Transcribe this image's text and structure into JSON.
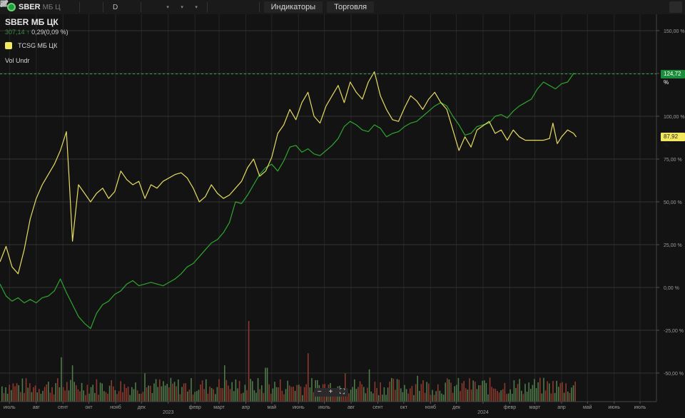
{
  "toolbar": {
    "ticker": "SBER",
    "ticker_suffix": "МБ Ц",
    "interval_label": "D",
    "indicators_label": "Индикаторы",
    "trading_label": "Торговля"
  },
  "legend": {
    "title": "SBER",
    "title_suffix": "МБ ЦК",
    "last_price": "307,14",
    "change": "0,29(0,09 %)",
    "compare_series": "TCSG МБ ЦК",
    "volume_indicator": "Vol Undr"
  },
  "badges": {
    "main": "124,72 %",
    "compare": "87,92 %"
  },
  "colors": {
    "main_series": "#2fa52f",
    "compare_series": "#e6db63",
    "volume_up": "#4f7a4a",
    "volume_down": "#8a3a2c",
    "background": "#131313"
  },
  "chart_data": {
    "type": "line",
    "y_unit": "%",
    "ylim": [
      -60,
      160
    ],
    "y_ticks": [
      "150,00 %",
      "125,00 %",
      "100,00 %",
      "75,00 %",
      "50,00 %",
      "25,00 %",
      "0,00 %",
      "-25,00 %",
      "-50,00 %"
    ],
    "y_tick_values": [
      150,
      125,
      100,
      75,
      50,
      25,
      0,
      -25,
      -50
    ],
    "x_ticks": [
      "июль",
      "авг",
      "сент",
      "окт",
      "нояб",
      "дек",
      "2023",
      "февр",
      "март",
      "апр",
      "май",
      "июнь",
      "июль",
      "авг",
      "сент",
      "окт",
      "нояб",
      "дек",
      "2024",
      "февр",
      "март",
      "апр",
      "май",
      "июнь",
      "июль"
    ],
    "x_range": [
      "2022-06-20",
      "2024-07-20"
    ],
    "grid": true,
    "series": [
      {
        "name": "SBER МБ ЦК",
        "points": [
          [
            "2022-06-20",
            2
          ],
          [
            "2022-06-27",
            -5
          ],
          [
            "2022-07-04",
            -8
          ],
          [
            "2022-07-11",
            -6
          ],
          [
            "2022-07-18",
            -9
          ],
          [
            "2022-07-25",
            -7
          ],
          [
            "2022-08-01",
            -9
          ],
          [
            "2022-08-08",
            -6
          ],
          [
            "2022-08-15",
            -5
          ],
          [
            "2022-08-22",
            -2
          ],
          [
            "2022-08-29",
            5
          ],
          [
            "2022-09-05",
            -3
          ],
          [
            "2022-09-12",
            -10
          ],
          [
            "2022-09-19",
            -17
          ],
          [
            "2022-09-26",
            -21
          ],
          [
            "2022-10-03",
            -24
          ],
          [
            "2022-10-10",
            -15
          ],
          [
            "2022-10-17",
            -10
          ],
          [
            "2022-10-24",
            -8
          ],
          [
            "2022-10-31",
            -4
          ],
          [
            "2022-11-07",
            -2
          ],
          [
            "2022-11-14",
            2
          ],
          [
            "2022-11-21",
            4
          ],
          [
            "2022-11-28",
            1
          ],
          [
            "2022-12-05",
            2
          ],
          [
            "2022-12-12",
            3
          ],
          [
            "2022-12-19",
            2
          ],
          [
            "2022-12-26",
            1
          ],
          [
            "2023-01-09",
            5
          ],
          [
            "2023-01-16",
            8
          ],
          [
            "2023-01-23",
            12
          ],
          [
            "2023-01-30",
            14
          ],
          [
            "2023-02-06",
            18
          ],
          [
            "2023-02-13",
            22
          ],
          [
            "2023-02-20",
            26
          ],
          [
            "2023-02-27",
            28
          ],
          [
            "2023-03-06",
            32
          ],
          [
            "2023-03-13",
            38
          ],
          [
            "2023-03-20",
            50
          ],
          [
            "2023-03-27",
            49
          ],
          [
            "2023-04-03",
            54
          ],
          [
            "2023-04-10",
            60
          ],
          [
            "2023-04-17",
            66
          ],
          [
            "2023-04-24",
            70
          ],
          [
            "2023-05-01",
            72
          ],
          [
            "2023-05-08",
            68
          ],
          [
            "2023-05-15",
            74
          ],
          [
            "2023-05-22",
            82
          ],
          [
            "2023-05-29",
            83
          ],
          [
            "2023-06-05",
            79
          ],
          [
            "2023-06-12",
            81
          ],
          [
            "2023-06-19",
            78
          ],
          [
            "2023-06-26",
            77
          ],
          [
            "2023-07-03",
            80
          ],
          [
            "2023-07-10",
            83
          ],
          [
            "2023-07-17",
            87
          ],
          [
            "2023-07-24",
            94
          ],
          [
            "2023-07-31",
            97
          ],
          [
            "2023-08-07",
            95
          ],
          [
            "2023-08-14",
            92
          ],
          [
            "2023-08-21",
            91
          ],
          [
            "2023-08-28",
            95
          ],
          [
            "2023-09-04",
            93
          ],
          [
            "2023-09-11",
            88
          ],
          [
            "2023-09-18",
            90
          ],
          [
            "2023-09-25",
            91
          ],
          [
            "2023-10-02",
            94
          ],
          [
            "2023-10-09",
            96
          ],
          [
            "2023-10-16",
            97
          ],
          [
            "2023-10-23",
            100
          ],
          [
            "2023-10-30",
            103
          ],
          [
            "2023-11-06",
            106
          ],
          [
            "2023-11-13",
            108
          ],
          [
            "2023-11-20",
            106
          ],
          [
            "2023-11-27",
            100
          ],
          [
            "2023-12-04",
            95
          ],
          [
            "2023-12-11",
            89
          ],
          [
            "2023-12-18",
            90
          ],
          [
            "2023-12-25",
            94
          ],
          [
            "2024-01-08",
            96
          ],
          [
            "2024-01-15",
            100
          ],
          [
            "2024-01-22",
            101
          ],
          [
            "2024-01-29",
            99
          ],
          [
            "2024-02-05",
            103
          ],
          [
            "2024-02-12",
            106
          ],
          [
            "2024-02-19",
            108
          ],
          [
            "2024-02-26",
            110
          ],
          [
            "2024-03-04",
            116
          ],
          [
            "2024-03-11",
            120
          ],
          [
            "2024-03-18",
            118
          ],
          [
            "2024-03-25",
            116
          ],
          [
            "2024-04-01",
            119
          ],
          [
            "2024-04-08",
            120
          ],
          [
            "2024-04-15",
            125
          ],
          [
            "2024-04-18",
            124.72
          ]
        ]
      },
      {
        "name": "TCSG МБ ЦК",
        "points": [
          [
            "2022-06-20",
            15
          ],
          [
            "2022-06-27",
            24
          ],
          [
            "2022-07-04",
            12
          ],
          [
            "2022-07-11",
            8
          ],
          [
            "2022-07-18",
            22
          ],
          [
            "2022-07-25",
            40
          ],
          [
            "2022-08-01",
            52
          ],
          [
            "2022-08-08",
            60
          ],
          [
            "2022-08-15",
            66
          ],
          [
            "2022-08-22",
            72
          ],
          [
            "2022-08-29",
            80
          ],
          [
            "2022-09-05",
            91
          ],
          [
            "2022-09-08",
            65
          ],
          [
            "2022-09-12",
            27
          ],
          [
            "2022-09-19",
            60
          ],
          [
            "2022-09-26",
            55
          ],
          [
            "2022-10-03",
            50
          ],
          [
            "2022-10-10",
            55
          ],
          [
            "2022-10-17",
            58
          ],
          [
            "2022-10-24",
            52
          ],
          [
            "2022-10-31",
            56
          ],
          [
            "2022-11-07",
            68
          ],
          [
            "2022-11-14",
            63
          ],
          [
            "2022-11-21",
            60
          ],
          [
            "2022-11-28",
            62
          ],
          [
            "2022-12-05",
            52
          ],
          [
            "2022-12-12",
            60
          ],
          [
            "2022-12-19",
            58
          ],
          [
            "2022-12-26",
            62
          ],
          [
            "2023-01-09",
            66
          ],
          [
            "2023-01-16",
            67
          ],
          [
            "2023-01-23",
            64
          ],
          [
            "2023-01-30",
            58
          ],
          [
            "2023-02-06",
            50
          ],
          [
            "2023-02-13",
            53
          ],
          [
            "2023-02-20",
            60
          ],
          [
            "2023-02-27",
            55
          ],
          [
            "2023-03-06",
            52
          ],
          [
            "2023-03-13",
            54
          ],
          [
            "2023-03-20",
            58
          ],
          [
            "2023-03-27",
            62
          ],
          [
            "2023-04-03",
            70
          ],
          [
            "2023-04-10",
            75
          ],
          [
            "2023-04-17",
            65
          ],
          [
            "2023-04-24",
            68
          ],
          [
            "2023-05-01",
            76
          ],
          [
            "2023-05-08",
            90
          ],
          [
            "2023-05-15",
            95
          ],
          [
            "2023-05-22",
            104
          ],
          [
            "2023-05-29",
            98
          ],
          [
            "2023-06-05",
            108
          ],
          [
            "2023-06-12",
            114
          ],
          [
            "2023-06-19",
            100
          ],
          [
            "2023-06-26",
            96
          ],
          [
            "2023-07-03",
            106
          ],
          [
            "2023-07-10",
            112
          ],
          [
            "2023-07-17",
            118
          ],
          [
            "2023-07-24",
            108
          ],
          [
            "2023-07-31",
            120
          ],
          [
            "2023-08-07",
            114
          ],
          [
            "2023-08-14",
            110
          ],
          [
            "2023-08-21",
            120
          ],
          [
            "2023-08-28",
            126
          ],
          [
            "2023-09-04",
            112
          ],
          [
            "2023-09-11",
            104
          ],
          [
            "2023-09-18",
            98
          ],
          [
            "2023-09-25",
            97
          ],
          [
            "2023-10-02",
            105
          ],
          [
            "2023-10-09",
            112
          ],
          [
            "2023-10-16",
            109
          ],
          [
            "2023-10-23",
            104
          ],
          [
            "2023-10-30",
            110
          ],
          [
            "2023-11-06",
            114
          ],
          [
            "2023-11-13",
            108
          ],
          [
            "2023-11-20",
            104
          ],
          [
            "2023-11-27",
            92
          ],
          [
            "2023-12-04",
            80
          ],
          [
            "2023-12-11",
            88
          ],
          [
            "2023-12-18",
            82
          ],
          [
            "2023-12-25",
            92
          ],
          [
            "2024-01-08",
            97
          ],
          [
            "2024-01-15",
            90
          ],
          [
            "2024-01-22",
            92
          ],
          [
            "2024-01-29",
            86
          ],
          [
            "2024-02-05",
            92
          ],
          [
            "2024-02-12",
            88
          ],
          [
            "2024-02-19",
            86
          ],
          [
            "2024-02-26",
            86
          ],
          [
            "2024-03-04",
            86
          ],
          [
            "2024-03-11",
            86
          ],
          [
            "2024-03-18",
            87
          ],
          [
            "2024-03-22",
            96
          ],
          [
            "2024-03-27",
            84
          ],
          [
            "2024-04-01",
            88
          ],
          [
            "2024-04-08",
            92
          ],
          [
            "2024-04-15",
            90
          ],
          [
            "2024-04-18",
            87.92
          ]
        ]
      }
    ],
    "volume_spikes": [
      [
        "2022-08-29",
        0.55
      ],
      [
        "2022-09-12",
        0.45
      ],
      [
        "2022-12-05",
        0.35
      ],
      [
        "2023-03-06",
        0.45
      ],
      [
        "2023-04-03",
        1.0
      ],
      [
        "2023-04-24",
        0.42
      ],
      [
        "2023-06-12",
        0.6
      ],
      [
        "2023-07-24",
        0.35
      ],
      [
        "2023-08-21",
        0.4
      ],
      [
        "2023-10-16",
        0.32
      ]
    ]
  }
}
